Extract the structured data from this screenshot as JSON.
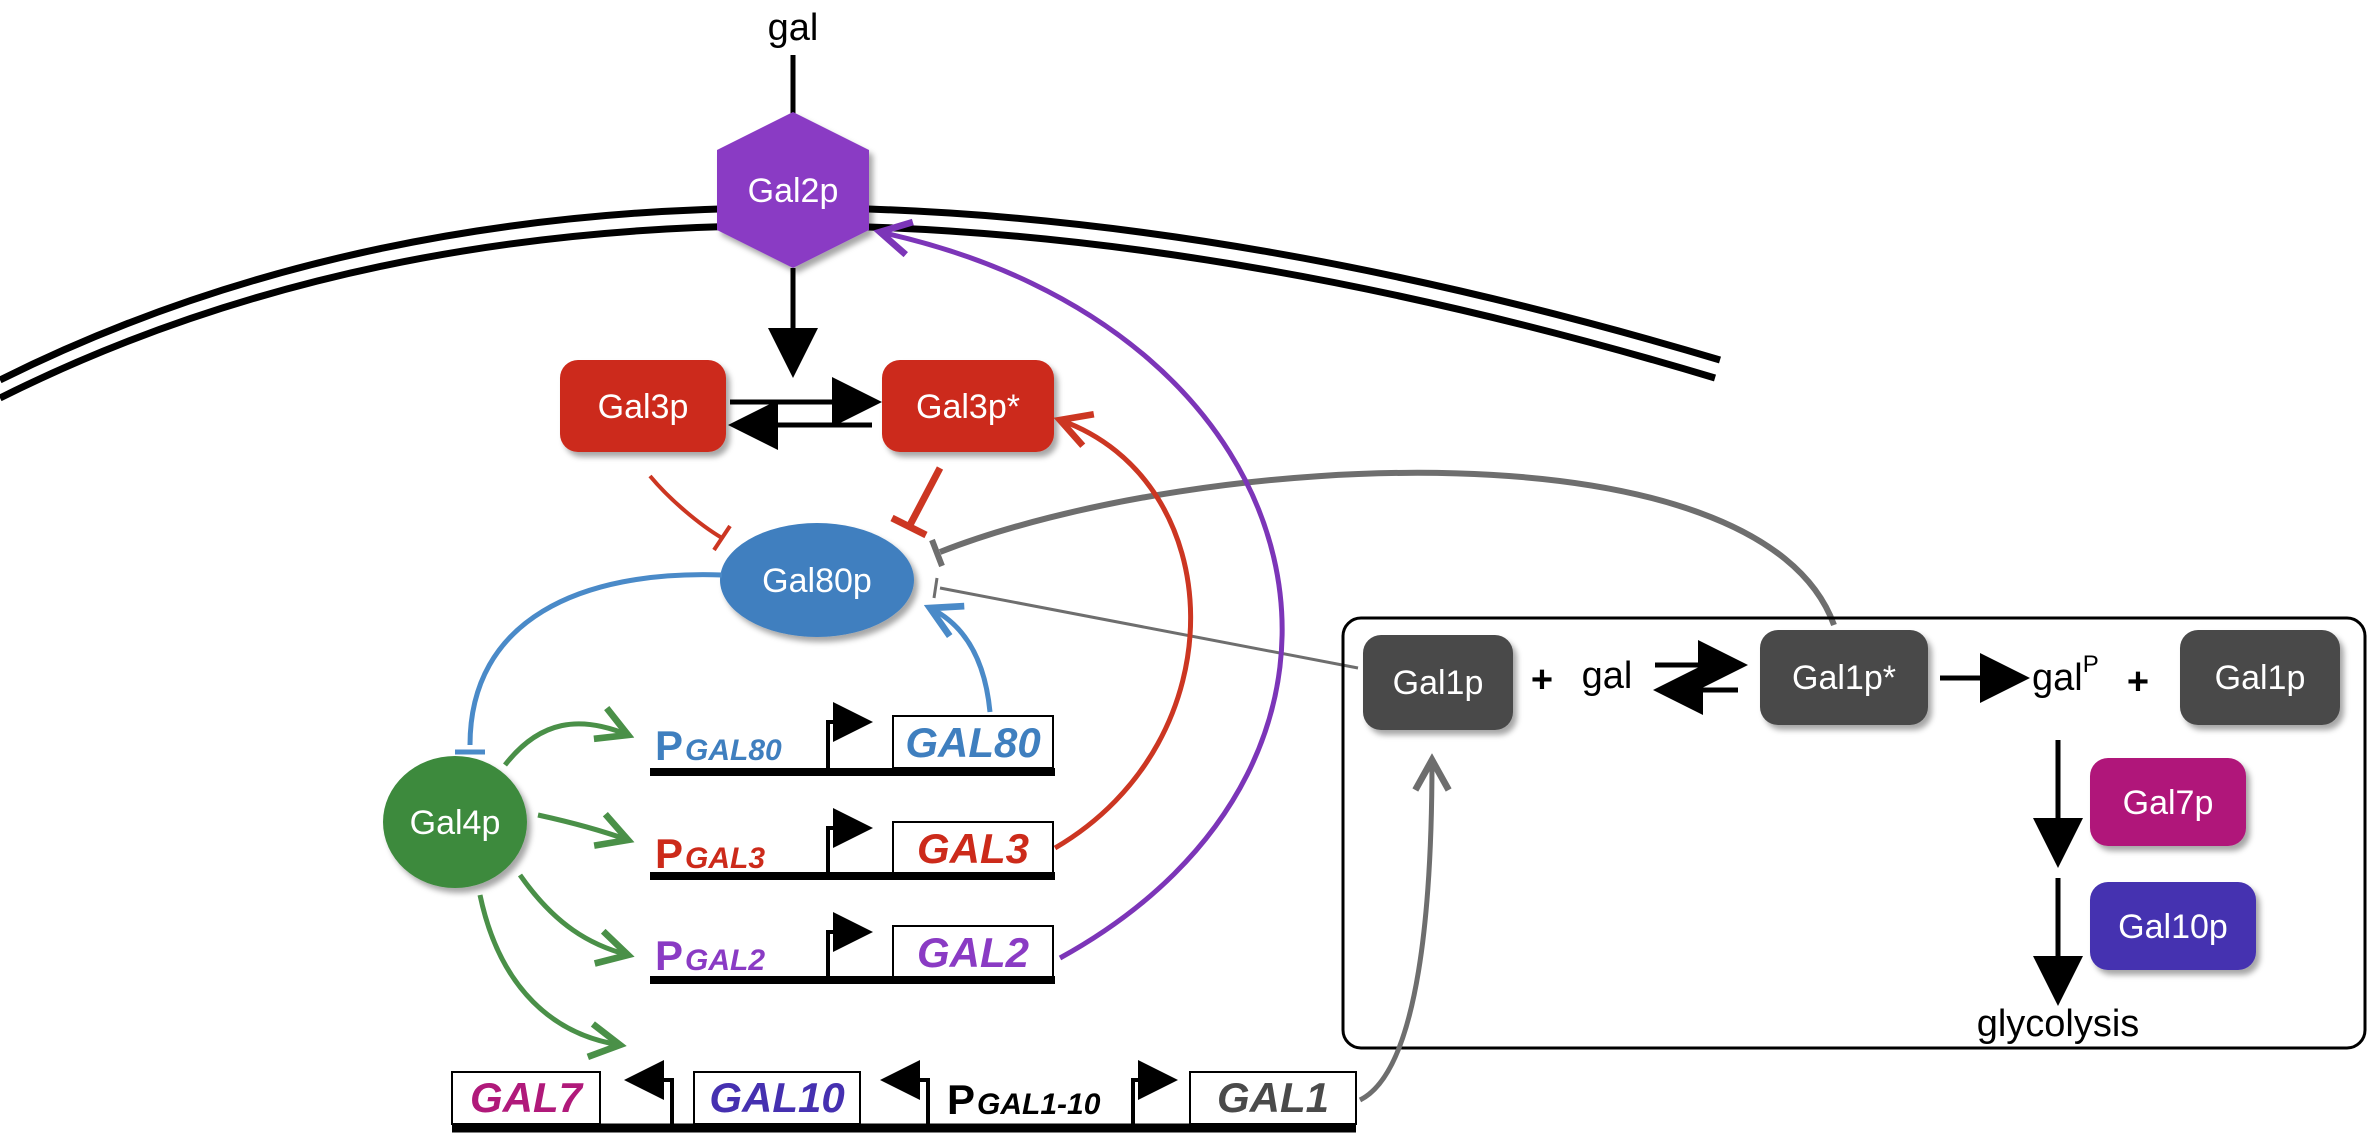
{
  "colors": {
    "gal2": "#8a3bc4",
    "gal3": "#cc2a1a",
    "gal80": "#3f7fbf",
    "gal4": "#3c8a3c",
    "gal1": "#4a4a4a",
    "gal7": "#b0197a",
    "gal10": "#4530b0",
    "arrow_purple": "#7c35b8",
    "arrow_red": "#cc3622",
    "arrow_blue": "#4a8ac8",
    "arrow_green": "#4a9048",
    "arrow_grey": "#6e6e6e"
  },
  "labels": {
    "gal_top": "gal",
    "gal2p": "Gal2p",
    "gal3p": "Gal3p",
    "gal3p_star": "Gal3p*",
    "gal80p": "Gal80p",
    "gal4p": "Gal4p",
    "gal1p_left": "Gal1p",
    "plus1": "+",
    "gal_mid": "gal",
    "gal1p_star": "Gal1p*",
    "galP_base": "gal",
    "galP_sup": "P",
    "plus2": "+",
    "gal1p_right": "Gal1p",
    "gal7p": "Gal7p",
    "gal10p": "Gal10p",
    "glycolysis": "glycolysis"
  },
  "genes": {
    "gal80": {
      "promoter_p": "P",
      "promoter_sub": "GAL80",
      "gene": "GAL80"
    },
    "gal3": {
      "promoter_p": "P",
      "promoter_sub": "GAL3",
      "gene": "GAL3"
    },
    "gal2": {
      "promoter_p": "P",
      "promoter_sub": "GAL2",
      "gene": "GAL2"
    },
    "bottom": {
      "gal7": "GAL7",
      "gal10": "GAL10",
      "promoter_p": "P",
      "promoter_sub": "GAL1-10",
      "gal1": "GAL1"
    }
  }
}
